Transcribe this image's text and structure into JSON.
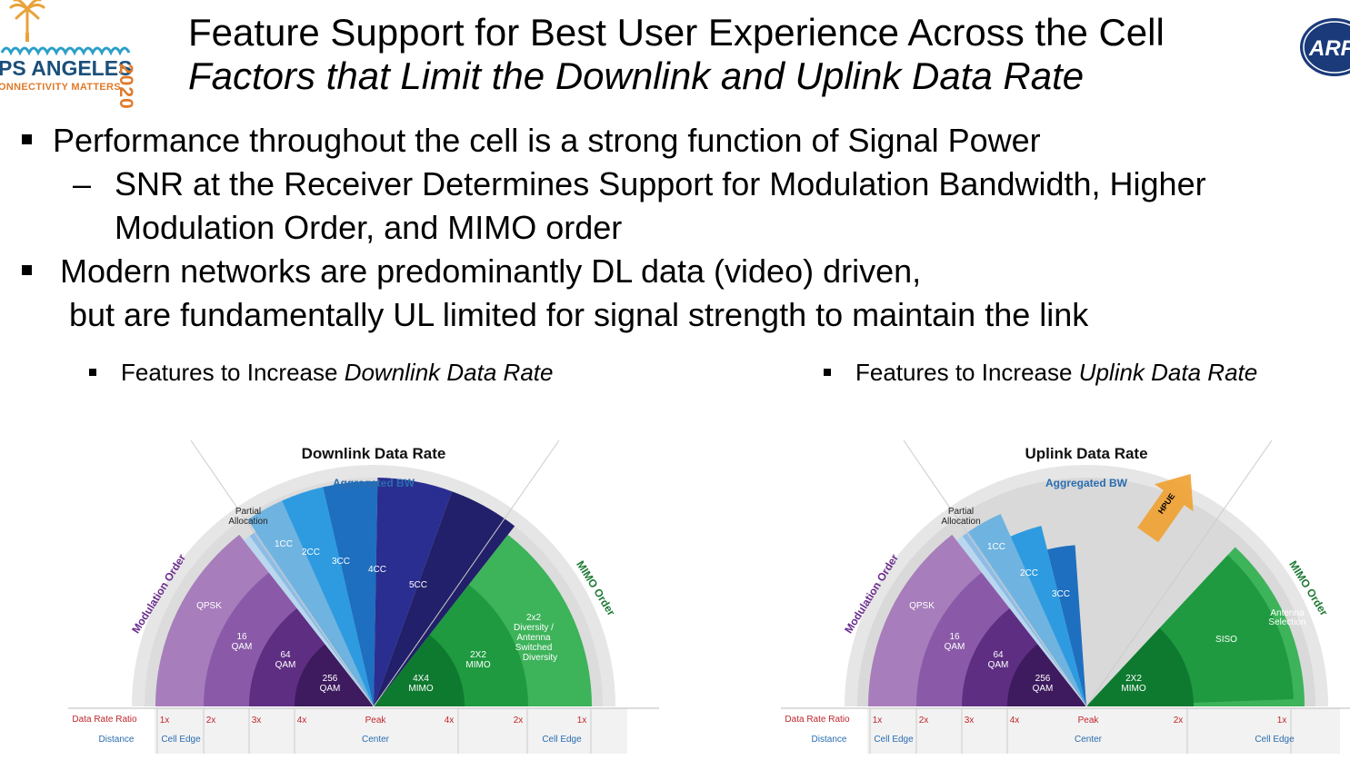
{
  "logo": {
    "city": "PS ANGELES",
    "tagline": "ONNECTIVITY MATTERS",
    "year": "2020"
  },
  "partner_logo": {
    "text": "ARFT"
  },
  "title": {
    "line1": "Feature Support for Best User Experience Across the Cell",
    "line2": "Factors that Limit the Downlink and Uplink Data Rate"
  },
  "bullets": [
    {
      "text": "Performance throughout the cell is a strong function of Signal Power"
    },
    {
      "dash": "–",
      "line1": "SNR at the Receiver Determines Support for Modulation Bandwidth, Higher",
      "line2": "Modulation Order, and MIMO order"
    },
    {
      "line1": "Modern networks are predominantly DL data (video) driven,",
      "line2": "but are fundamentally UL limited for signal strength to maintain the link"
    }
  ],
  "sub_bullets": {
    "left": {
      "prefix": "Features to Increase ",
      "emph": "Downlink Data Rate"
    },
    "right": {
      "prefix": "Features to Increase ",
      "emph": "Uplink Data Rate"
    }
  },
  "colors": {
    "purple_light": "#a77dbb",
    "purple_mid": "#8a5aa8",
    "purple_dark": "#5e2e83",
    "purple_darkest": "#3e1a5e",
    "blue_1": "#6fb3e0",
    "blue_2": "#2e9be0",
    "blue_3": "#1e6fbf",
    "blue_4": "#2a2e90",
    "blue_5": "#22206a",
    "green_light": "#3db35a",
    "green_mid": "#1f9a40",
    "green_dark": "#0e7a30",
    "grey_arc": "#d2d2d2",
    "label_blue": "#2a6db0",
    "label_red": "#c0272d",
    "label_purple": "#6a2c8c",
    "label_green": "#1f7a35",
    "hpue_orange": "#f0a030"
  },
  "downlink": {
    "title": "Downlink Data Rate",
    "aggregated_bw": "Aggregated BW",
    "partial_allocation_1": "Partial",
    "partial_allocation_2": "Allocation",
    "modulation_order": "Modulation Order",
    "mimo_order": "MIMO Order",
    "mod_labels": {
      "qpsk": "QPSK",
      "qam16_1": "16",
      "qam16_2": "QAM",
      "qam64_1": "64",
      "qam64_2": "QAM",
      "qam256_1": "256",
      "qam256_2": "QAM"
    },
    "cc_labels": [
      "1CC",
      "2CC",
      "3CC",
      "4CC",
      "5CC"
    ],
    "mimo_labels": {
      "m4x4_1": "4X4",
      "m4x4_2": "MIMO",
      "m2x2_1": "2X2",
      "m2x2_2": "MIMO",
      "div_1": "2x2",
      "div_2": "Diversity /",
      "div_3": "Antenna",
      "div_4": "Switched",
      "div_5": "Diversity"
    },
    "axis": {
      "ratio_label": "Data Rate Ratio",
      "distance_label": "Distance",
      "ticks_left": [
        "1x",
        "2x",
        "3x",
        "4x"
      ],
      "peak": "Peak",
      "ticks_right": [
        "4x",
        "2x",
        "1x"
      ],
      "cell_edge_left": "Cell Edge",
      "center": "Center",
      "cell_edge_right": "Cell Edge"
    }
  },
  "uplink": {
    "title": "Uplink Data Rate",
    "aggregated_bw": "Aggregated BW",
    "partial_allocation_1": "Partial",
    "partial_allocation_2": "Allocation",
    "modulation_order": "Modulation Order",
    "mimo_order": "MIMO Order",
    "hpue": "HPUE",
    "mod_labels": {
      "qpsk": "QPSK",
      "qam16_1": "16",
      "qam16_2": "QAM",
      "qam64_1": "64",
      "qam64_2": "QAM",
      "qam256_1": "256",
      "qam256_2": "QAM"
    },
    "cc_labels": [
      "1CC",
      "2CC",
      "3CC"
    ],
    "mimo_labels": {
      "m2x2_1": "2X2",
      "m2x2_2": "MIMO",
      "siso": "SISO",
      "ant_1": "Antenna",
      "ant_2": "Selection"
    },
    "axis": {
      "ratio_label": "Data Rate Ratio",
      "distance_label": "Distance",
      "ticks_left": [
        "1x",
        "2x",
        "3x",
        "4x"
      ],
      "peak": "Peak",
      "ticks_right": [
        "2x",
        "1x"
      ],
      "cell_edge_left": "Cell Edge",
      "center": "Center",
      "cell_edge_right": "Cell Edge"
    }
  }
}
